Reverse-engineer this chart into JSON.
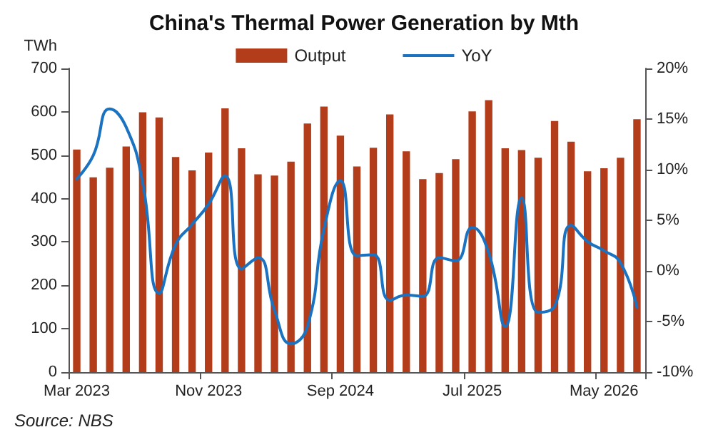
{
  "chart_data": {
    "type": "bar",
    "title": "China's Thermal Power Generation by Mth",
    "ylabel": "TWh",
    "categories": [
      "Mar 2023",
      null,
      null,
      null,
      null,
      null,
      null,
      null,
      "Nov 2023",
      null,
      null,
      null,
      null,
      null,
      null,
      null,
      "Sep 2024",
      null,
      null,
      null,
      null,
      null,
      null,
      null,
      "Jul 2025",
      null,
      null,
      null,
      null,
      null,
      null,
      null,
      "May 2026",
      null,
      null
    ],
    "series": [
      {
        "name": "Output",
        "color": "#b33d1a",
        "values": [
          513,
          449,
          471,
          520,
          599,
          587,
          496,
          465,
          506,
          608,
          516,
          456,
          453,
          485,
          573,
          612,
          545,
          474,
          517,
          594,
          509,
          445,
          459,
          491,
          601,
          627,
          516,
          512,
          494,
          579,
          531,
          463,
          470,
          494,
          583
        ]
      },
      {
        "name": "YoY",
        "type": "line",
        "axis": "y2",
        "color": "#1a72c0",
        "values": [
          9.1,
          11.4,
          16.0,
          14.2,
          8.7,
          -2.2,
          2.6,
          4.6,
          6.6,
          9.4,
          0.2,
          1.3,
          -3.9,
          -7.2,
          -5.5,
          4.1,
          8.9,
          1.5,
          1.6,
          -2.9,
          -2.4,
          -2.5,
          1.3,
          1.0,
          4.3,
          1.8,
          -5.5,
          7.2,
          -4.1,
          -3.5,
          4.5,
          2.9,
          2.0,
          0.8,
          -3.6
        ]
      }
    ],
    "ylim": [
      0,
      700
    ],
    "yticks": [
      0,
      100,
      200,
      300,
      400,
      500,
      600,
      700
    ],
    "y2lim": [
      -10,
      20
    ],
    "y2ticks": [
      {
        "value": -10,
        "label": "-10%"
      },
      {
        "value": -5,
        "label": "-5%"
      },
      {
        "value": 0,
        "label": "0%"
      },
      {
        "value": 5,
        "label": "5%"
      },
      {
        "value": 10,
        "label": "10%"
      },
      {
        "value": 15,
        "label": "15%"
      },
      {
        "value": 20,
        "label": "20%"
      }
    ],
    "legend": "top",
    "grid": false,
    "marker": "none",
    "line_style": "solid",
    "annotations": [
      "Source: NBS"
    ]
  }
}
